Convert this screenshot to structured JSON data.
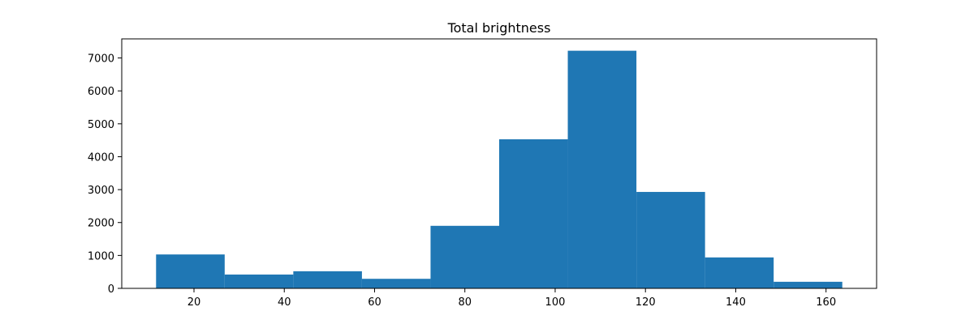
{
  "chart_data": {
    "type": "bar",
    "title": "Total brightness",
    "xlabel": "",
    "ylabel": "",
    "bar_color": "#1f77b4",
    "bin_edges": [
      11.6,
      26.8,
      42.0,
      57.2,
      72.4,
      87.6,
      102.8,
      118.0,
      133.2,
      148.4,
      163.6
    ],
    "values": [
      1030,
      420,
      520,
      290,
      1900,
      4530,
      7220,
      2930,
      940,
      200
    ],
    "xlim": [
      4.0,
      171.2
    ],
    "ylim": [
      0,
      7580
    ],
    "xticks": [
      20,
      40,
      60,
      80,
      100,
      120,
      140,
      160
    ],
    "xtick_labels": [
      "20",
      "40",
      "60",
      "80",
      "100",
      "120",
      "140",
      "160"
    ],
    "yticks": [
      0,
      1000,
      2000,
      3000,
      4000,
      5000,
      6000,
      7000
    ],
    "ytick_labels": [
      "0",
      "1000",
      "2000",
      "3000",
      "4000",
      "5000",
      "6000",
      "7000"
    ],
    "grid": false,
    "legend": null
  }
}
